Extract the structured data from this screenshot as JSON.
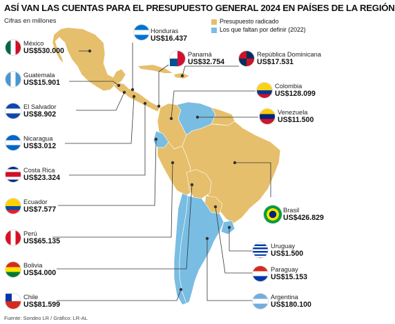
{
  "title": "ASÍ VAN LAS CUENTAS PARA EL PRESUPUESTO GENERAL 2024 EN PAÍSES DE LA REGIÓN",
  "subtitle": "Cifras en millones",
  "colors": {
    "radicado": "#E6BF6C",
    "faltan": "#79BDE3",
    "line": "#333333"
  },
  "legend": [
    {
      "label": "Presupuesto radicado"
    },
    {
      "label": "Los que faltan por definir (2022)"
    }
  ],
  "countries": {
    "mexico": {
      "name": "México",
      "value": "US$530.000",
      "status": "radicado",
      "flag": "mexico-flag"
    },
    "guatemala": {
      "name": "Guatemala",
      "value": "US$15.901",
      "status": "radicado",
      "flag": "guatemala-flag"
    },
    "el_salvador": {
      "name": "El Salvador",
      "value": "US$8.902",
      "status": "radicado",
      "flag": "el-salvador-flag"
    },
    "nicaragua": {
      "name": "Nicaragua",
      "value": "US$3.012",
      "status": "radicado",
      "flag": "nicaragua-flag"
    },
    "costa_rica": {
      "name": "Costa Rica",
      "value": "US$23.324",
      "status": "radicado",
      "flag": "costa-rica-flag"
    },
    "ecuador": {
      "name": "Ecuador",
      "value": "US$7.577",
      "status": "faltan",
      "flag": "ecuador-flag"
    },
    "peru": {
      "name": "Perú",
      "value": "US$65.135",
      "status": "radicado",
      "flag": "peru-flag"
    },
    "bolivia": {
      "name": "Bolivia",
      "value": "US$4.000",
      "status": "radicado",
      "flag": "bolivia-flag"
    },
    "chile": {
      "name": "Chile",
      "value": "US$81.599",
      "status": "faltan",
      "flag": "chile-flag"
    },
    "honduras": {
      "name": "Honduras",
      "value": "US$16.437",
      "status": "radicado",
      "flag": "honduras-flag"
    },
    "panama": {
      "name": "Panamá",
      "value": "US$32.754",
      "status": "radicado",
      "flag": "panama-flag"
    },
    "republica_dominicana": {
      "name": "República Dominicana",
      "value": "US$17.531",
      "status": "radicado",
      "flag": "dominican-republic-flag"
    },
    "colombia": {
      "name": "Colombia",
      "value": "US$128.099",
      "status": "radicado",
      "flag": "colombia-flag"
    },
    "venezuela": {
      "name": "Venezuela",
      "value": "US$11.500",
      "status": "faltan",
      "flag": "venezuela-flag"
    },
    "brasil": {
      "name": "Brasil",
      "value": "US$426.829",
      "status": "radicado",
      "flag": "brazil-flag"
    },
    "uruguay": {
      "name": "Uruguay",
      "value": "US$1.500",
      "status": "faltan",
      "flag": "uruguay-flag"
    },
    "paraguay": {
      "name": "Paraguay",
      "value": "US$15.153",
      "status": "radicado",
      "flag": "paraguay-flag"
    },
    "argentina": {
      "name": "Argentina",
      "value": "US$180.100",
      "status": "faltan",
      "flag": "argentina-flag"
    }
  },
  "source": "Fuente: Sondeo LR / Gráfico: LR-AL"
}
